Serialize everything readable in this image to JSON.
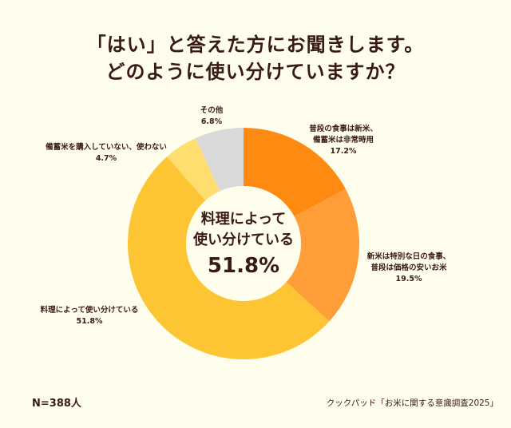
{
  "title_lines": [
    "「はい」と答えた方にお聞きします。",
    "どのように使い分けていますか？"
  ],
  "chart_data": {
    "type": "pie",
    "donut": true,
    "start": "top, clockwise",
    "slices": [
      {
        "label_lines": [
          "普段の食事は新米、",
          "備蓄米は非常時用"
        ],
        "value": 17.2,
        "value_label": "17.2%",
        "color": "#FF8A12"
      },
      {
        "label_lines": [
          "新米は特別な日の食事、",
          "普段は価格の安いお米"
        ],
        "value": 19.5,
        "value_label": "19.5%",
        "color": "#FF9D38"
      },
      {
        "label_lines": [
          "料理によって使い分けている"
        ],
        "value": 51.8,
        "value_label": "51.8%",
        "color": "#FDC534"
      },
      {
        "label_lines": [
          "備蓄米を購入していない、使わない"
        ],
        "value": 4.7,
        "value_label": "4.7%",
        "color": "#FFDD6E"
      },
      {
        "label_lines": [
          "その他"
        ],
        "value": 6.8,
        "value_label": "6.8%",
        "color": "#D9D9D9"
      }
    ],
    "center_label_lines": [
      "料理によって",
      "使い分けている"
    ],
    "center_value": "51.8%"
  },
  "footer": {
    "n": "N=388人",
    "source": "クックパッド「お米に関する意識調査2025」"
  }
}
